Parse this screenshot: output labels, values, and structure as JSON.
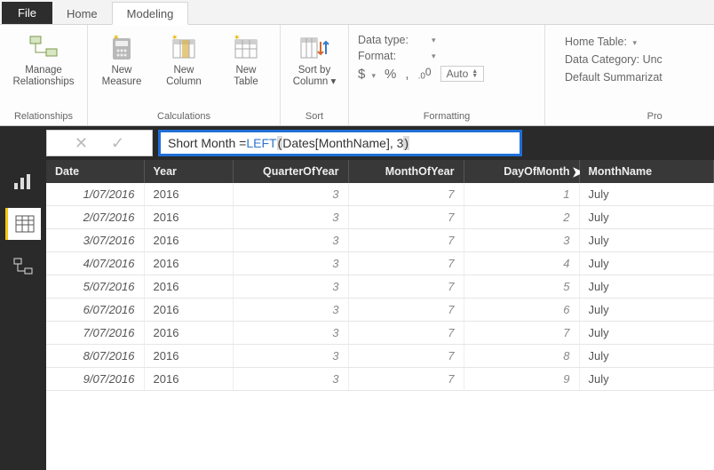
{
  "colors": {
    "ribbon_bg": "#fdfdfd",
    "dark_bg": "#2a2a2a",
    "accent_yellow": "#f2c811",
    "formula_highlight_border": "#1f6fd6",
    "fn_color": "#2e77cc",
    "header_bg": "#383838",
    "grid_line": "#e6e6e6"
  },
  "tabs": {
    "file": "File",
    "items": [
      "Home",
      "Modeling"
    ],
    "active_index": 1
  },
  "ribbon": {
    "groups": [
      {
        "title": "Relationships",
        "buttons": [
          {
            "name": "manage-relationships",
            "label": "Manage\nRelationships",
            "icon": "relationships"
          }
        ]
      },
      {
        "title": "Calculations",
        "buttons": [
          {
            "name": "new-measure",
            "label": "New\nMeasure",
            "icon": "measure"
          },
          {
            "name": "new-column",
            "label": "New\nColumn",
            "icon": "column"
          },
          {
            "name": "new-table",
            "label": "New\nTable",
            "icon": "table"
          }
        ]
      },
      {
        "title": "Sort",
        "buttons": [
          {
            "name": "sort-by-column",
            "label": "Sort by\nColumn",
            "icon": "sort",
            "dropdown": true
          }
        ]
      }
    ],
    "formatting": {
      "title": "Formatting",
      "data_type_label": "Data type:",
      "format_label": "Format:",
      "symbols": {
        "currency": "$",
        "percent": "%",
        "thousand": ",",
        "decimal": ".00"
      },
      "auto_label": "Auto"
    },
    "properties": {
      "title": "Pro",
      "home_table_label": "Home Table:",
      "data_category_label": "Data Category:",
      "data_category_value": "Unc",
      "summarization_label": "Default Summarizat"
    }
  },
  "formula": {
    "prefix": "Short Month = ",
    "fn": "LEFT",
    "open_paren": "(",
    "arg": " Dates[MonthName], 3 ",
    "close_paren": ")"
  },
  "views": {
    "items": [
      "report",
      "data",
      "model"
    ],
    "active": "data"
  },
  "grid": {
    "columns": [
      {
        "key": "date",
        "label": "Date",
        "align": "left"
      },
      {
        "key": "year",
        "label": "Year",
        "align": "left"
      },
      {
        "key": "qoy",
        "label": "QuarterOfYear",
        "align": "right"
      },
      {
        "key": "moy",
        "label": "MonthOfYear",
        "align": "right"
      },
      {
        "key": "dom",
        "label": "DayOfMonth",
        "align": "right",
        "cursor": true
      },
      {
        "key": "mname",
        "label": "MonthName",
        "align": "left"
      }
    ],
    "rows": [
      {
        "date": "1/07/2016",
        "year": "2016",
        "qoy": "3",
        "moy": "7",
        "dom": "1",
        "mname": "July"
      },
      {
        "date": "2/07/2016",
        "year": "2016",
        "qoy": "3",
        "moy": "7",
        "dom": "2",
        "mname": "July"
      },
      {
        "date": "3/07/2016",
        "year": "2016",
        "qoy": "3",
        "moy": "7",
        "dom": "3",
        "mname": "July"
      },
      {
        "date": "4/07/2016",
        "year": "2016",
        "qoy": "3",
        "moy": "7",
        "dom": "4",
        "mname": "July"
      },
      {
        "date": "5/07/2016",
        "year": "2016",
        "qoy": "3",
        "moy": "7",
        "dom": "5",
        "mname": "July"
      },
      {
        "date": "6/07/2016",
        "year": "2016",
        "qoy": "3",
        "moy": "7",
        "dom": "6",
        "mname": "July"
      },
      {
        "date": "7/07/2016",
        "year": "2016",
        "qoy": "3",
        "moy": "7",
        "dom": "7",
        "mname": "July"
      },
      {
        "date": "8/07/2016",
        "year": "2016",
        "qoy": "3",
        "moy": "7",
        "dom": "8",
        "mname": "July"
      },
      {
        "date": "9/07/2016",
        "year": "2016",
        "qoy": "3",
        "moy": "7",
        "dom": "9",
        "mname": "July"
      }
    ]
  }
}
